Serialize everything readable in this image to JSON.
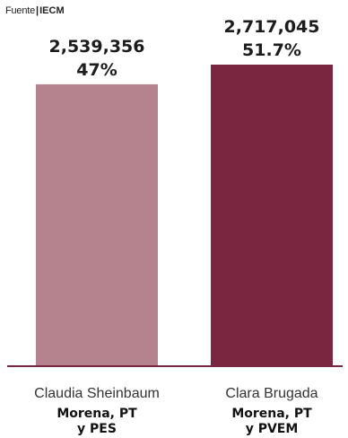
{
  "source": {
    "label": "Fuente",
    "value": "IECM"
  },
  "chart_data": {
    "type": "bar",
    "title": "",
    "xlabel": "",
    "ylabel": "",
    "ylim": [
      0,
      2717045
    ],
    "categories": [
      {
        "name": "Claudia Sheinbaum",
        "party_line1": "Morena, PT",
        "party_line2": "y PES"
      },
      {
        "name": "Clara Brugada",
        "party_line1": "Morena, PT",
        "party_line2": "y PVEM"
      }
    ],
    "values": [
      2539356,
      2717045
    ],
    "value_labels": [
      "2,539,356",
      "2,717,045"
    ],
    "percent_labels": [
      "47%",
      "51.7%"
    ],
    "colors": [
      "#b5838e",
      "#7a2641"
    ],
    "baseline_color": "#7a2641"
  }
}
